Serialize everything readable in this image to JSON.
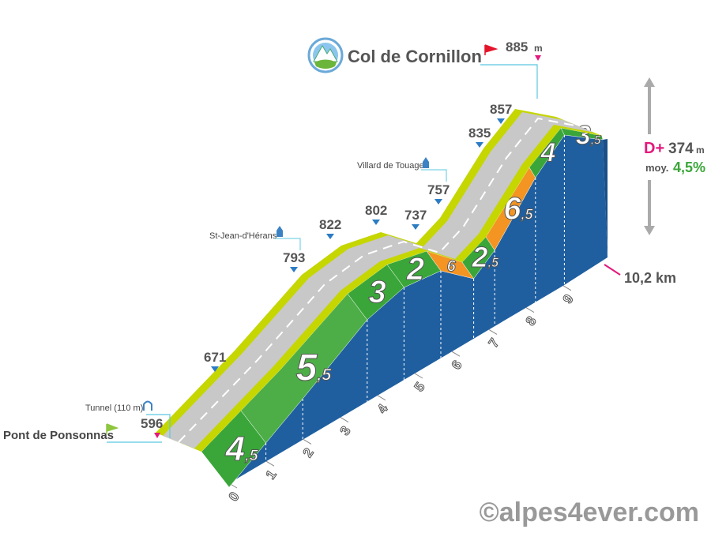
{
  "title": "Col de Cornillon",
  "start": {
    "name": "Pont de Ponsonnas",
    "altitude": "596"
  },
  "summit": {
    "altitude": "885",
    "unit": "m"
  },
  "tunnel": "Tunnel (110 m)",
  "altitudes": [
    "671",
    "793",
    "822",
    "802",
    "737",
    "757",
    "835",
    "857"
  ],
  "places": [
    "St-Jean-d'Hérans",
    "Villard de Touage"
  ],
  "km_ticks": [
    "0",
    "1",
    "2",
    "3",
    "4",
    "5",
    "6",
    "7",
    "8",
    "9"
  ],
  "gradients": [
    {
      "main": "4",
      "sub": ",5",
      "color": "#3aa639"
    },
    {
      "main": "5",
      "sub": ",5",
      "color": "#4dae47"
    },
    {
      "main": "3",
      "sub": "",
      "color": "#3aa639"
    },
    {
      "main": "2",
      "sub": "",
      "color": "#3aa639"
    },
    {
      "main": "6",
      "sub": "",
      "color": "#f39423"
    },
    {
      "main": "2",
      "sub": ",5",
      "color": "#3aa639"
    },
    {
      "main": "6",
      "sub": ",5",
      "color": "#f39423"
    },
    {
      "main": "4",
      "sub": "",
      "color": "#3aa639"
    },
    {
      "main": "3",
      "sub": ",5",
      "color": "#3aa639"
    }
  ],
  "stats": {
    "gain_label": "D+",
    "gain": "374",
    "gain_unit": "m",
    "avg_label": "moy.",
    "avg": "4,5%",
    "distance": "10,2 km"
  },
  "credit": "©alpes4ever.com"
}
